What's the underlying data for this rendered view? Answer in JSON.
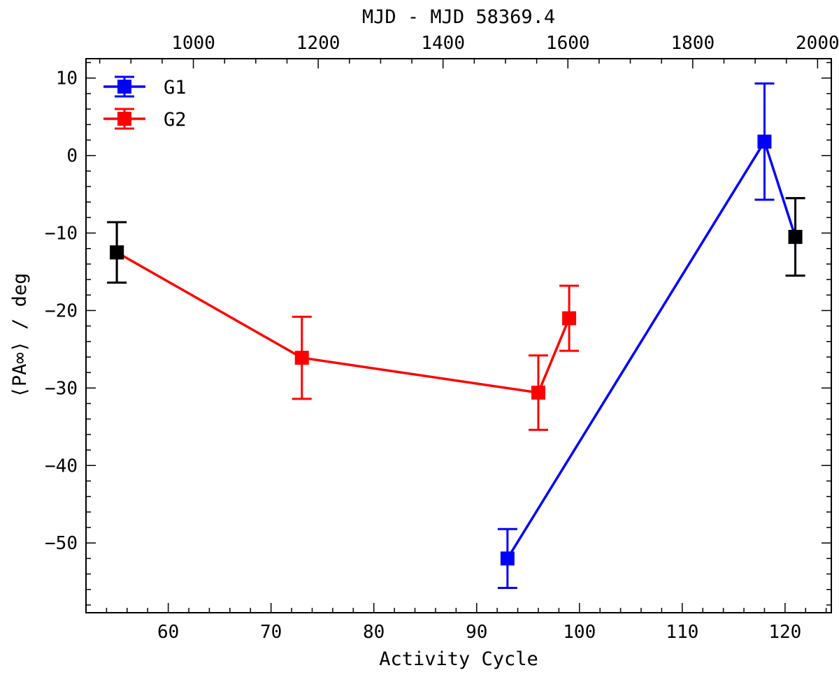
{
  "chart_data": {
    "type": "scatter",
    "title": "",
    "xlabel": "Activity Cycle",
    "ylabel": "⟨PA∞⟩ / deg",
    "top_xlabel": "MJD - MJD 58369.4",
    "xlim": [
      52,
      124.5
    ],
    "ylim": [
      -59,
      12.5
    ],
    "top_xlim": [
      828,
      2022
    ],
    "x_ticks": [
      60,
      70,
      80,
      90,
      100,
      110,
      120
    ],
    "y_ticks": [
      10,
      0,
      -10,
      -20,
      -30,
      -40,
      -50
    ],
    "top_ticks": [
      1000,
      1200,
      1400,
      1600,
      1800,
      2000
    ],
    "x_tick_labels": [
      "60",
      "70",
      "80",
      "90",
      "100",
      "110",
      "120"
    ],
    "y_tick_labels": [
      "10",
      "0",
      "−10",
      "−20",
      "−30",
      "−40",
      "−50"
    ],
    "top_tick_labels": [
      "1000",
      "1200",
      "1400",
      "1600",
      "1800",
      "2000"
    ],
    "legend_position": "upper-left",
    "series": [
      {
        "name": "G1",
        "color": "#0000ff",
        "points": [
          {
            "x": 93,
            "y": -52.0,
            "err": 3.8
          },
          {
            "x": 118,
            "y": 1.8,
            "err": 7.5
          },
          {
            "x": 121,
            "y": -10.5,
            "err": 5.0
          }
        ]
      },
      {
        "name": "G2",
        "color": "#ff0000",
        "points": [
          {
            "x": 55,
            "y": -12.5,
            "err": 3.9
          },
          {
            "x": 73,
            "y": -26.1,
            "err": 5.3
          },
          {
            "x": 96,
            "y": -30.6,
            "err": 4.8
          },
          {
            "x": 99,
            "y": -21.0,
            "err": 4.2
          }
        ]
      }
    ],
    "highlighted_points": {
      "color": "#000000",
      "points": [
        {
          "x": 55,
          "y": -12.5,
          "err": 3.9
        },
        {
          "x": 121,
          "y": -10.5,
          "err": 5.0
        }
      ]
    }
  }
}
